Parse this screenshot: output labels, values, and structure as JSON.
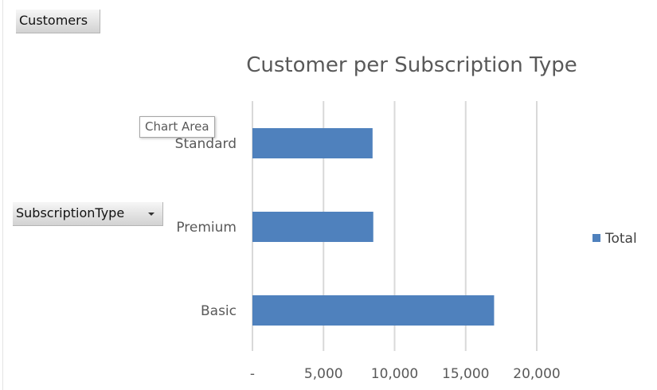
{
  "pivot_fields": {
    "filter_field": "Customers",
    "row_field": "SubscriptionType"
  },
  "tooltip": {
    "text": "Chart Area"
  },
  "colors": {
    "bar": "#4f81bd",
    "grid": "#d9d9d9",
    "text": "#595959"
  },
  "chart_data": {
    "type": "bar",
    "orientation": "horizontal",
    "title": "Customer per Subscription Type",
    "categories": [
      "Standard",
      "Premium",
      "Basic"
    ],
    "series": [
      {
        "name": "Total",
        "values": [
          8450,
          8500,
          17000
        ]
      }
    ],
    "xlim": [
      0,
      20000
    ],
    "x_ticks": [
      0,
      5000,
      10000,
      15000,
      20000
    ],
    "x_tick_labels": [
      "-",
      "5,000",
      "10,000",
      "15,000",
      "20,000"
    ],
    "grid": true,
    "legend": "right"
  }
}
